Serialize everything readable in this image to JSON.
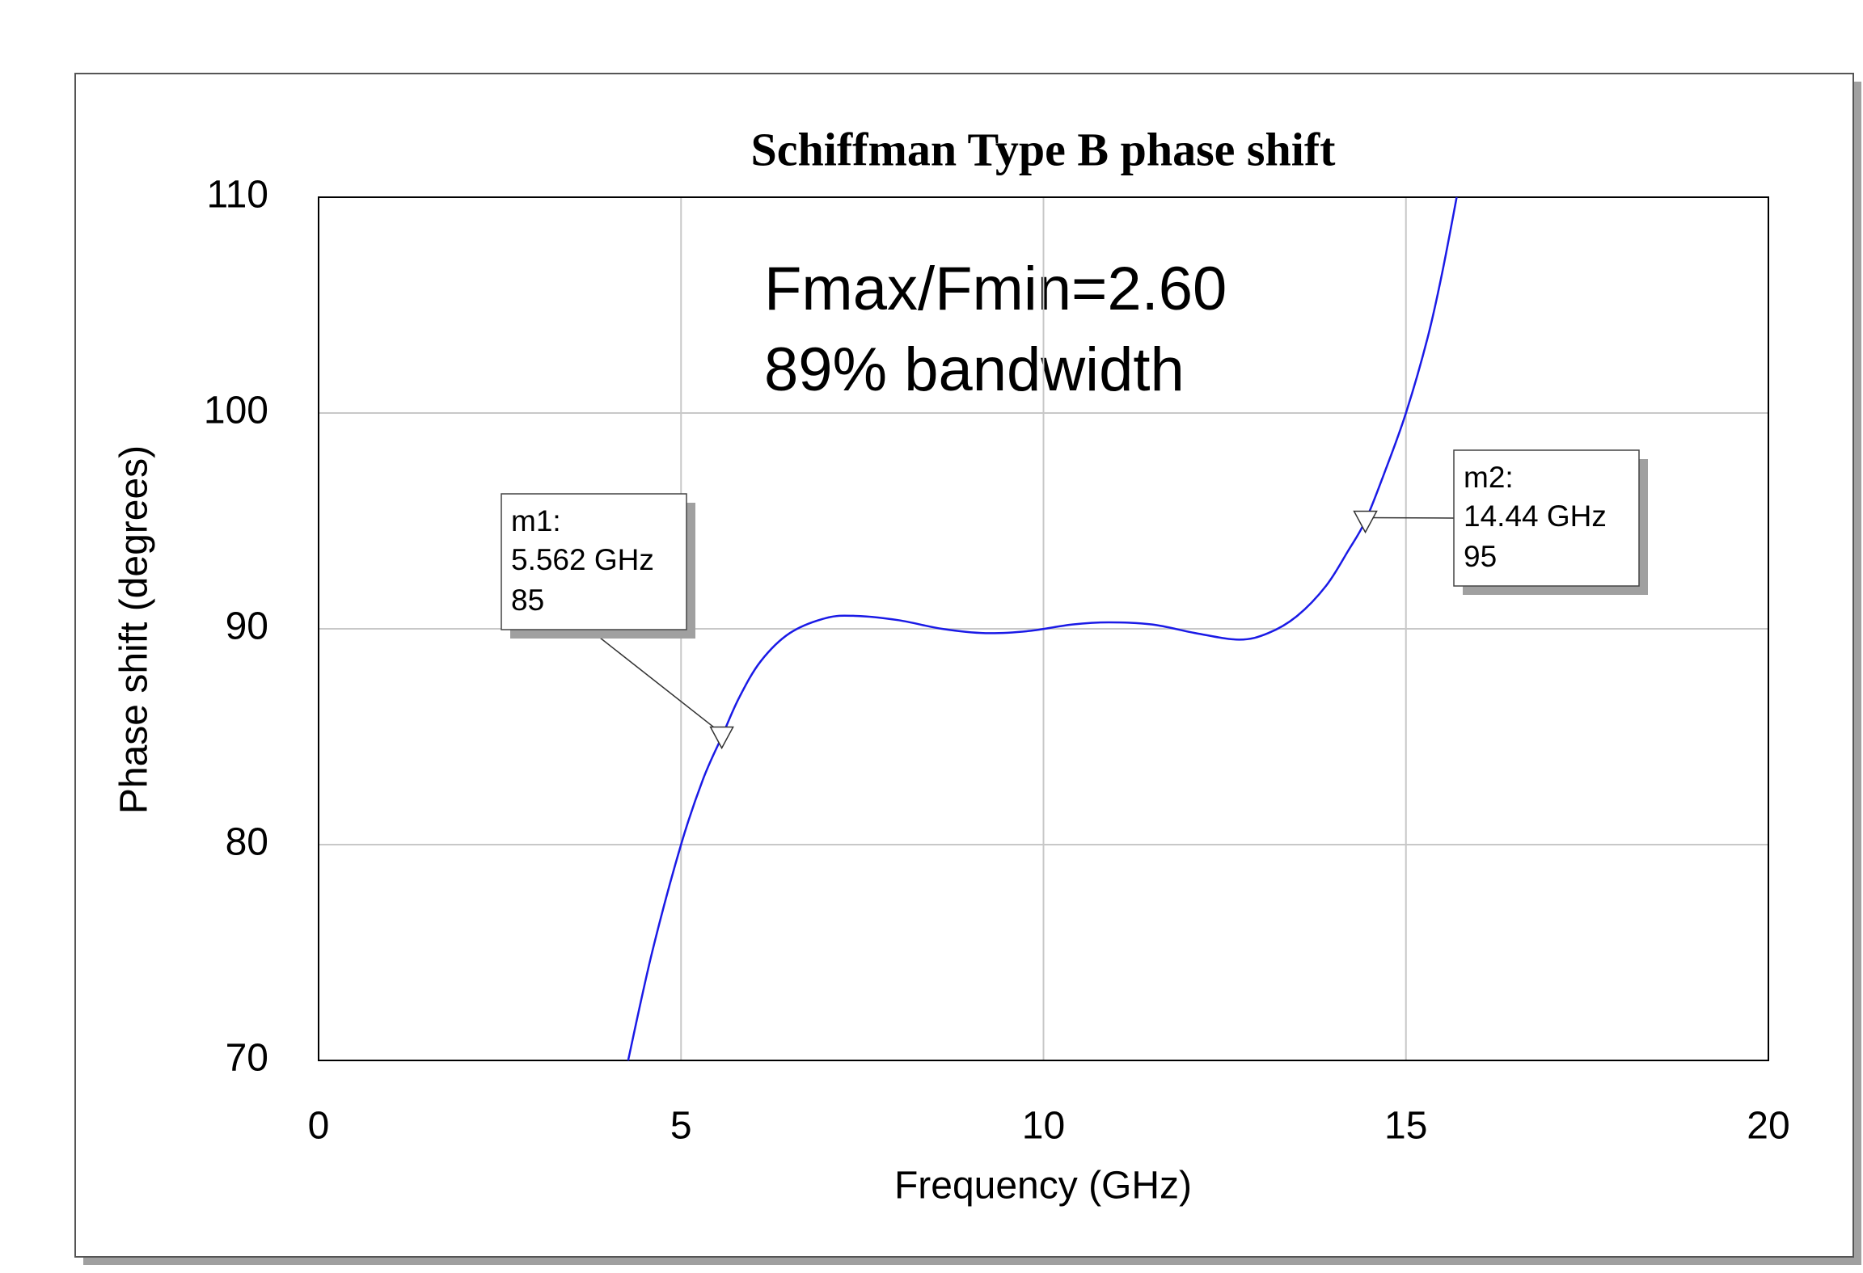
{
  "chart_data": {
    "type": "line",
    "title": "Schiffman Type B phase shift",
    "x_label": "Frequency (GHz)",
    "y_label": "Phase shift (degrees)",
    "xlim": [
      0,
      20
    ],
    "xticks": [
      0,
      5,
      10,
      15,
      20
    ],
    "ylim": [
      70,
      110
    ],
    "yticks": [
      70,
      80,
      90,
      100,
      110
    ],
    "grid": true,
    "annotations": [
      "Fmax/Fmin=2.60",
      "89% bandwidth"
    ],
    "x": [
      4.27,
      4.6,
      5.0,
      5.3,
      5.562,
      5.8,
      6.1,
      6.5,
      7.0,
      7.4,
      8.0,
      8.6,
      9.2,
      9.8,
      10.4,
      10.9,
      11.5,
      12.1,
      12.7,
      13.1,
      13.5,
      13.9,
      14.2,
      14.44,
      14.7,
      15.0,
      15.3,
      15.5,
      15.7
    ],
    "series": [
      {
        "color": "#1a1ae6",
        "values": [
          70,
          75,
          80,
          83,
          85,
          86.8,
          88.5,
          89.8,
          90.5,
          90.6,
          90.4,
          90.0,
          89.8,
          89.9,
          90.2,
          90.3,
          90.2,
          89.8,
          89.5,
          89.8,
          90.6,
          92.0,
          93.6,
          95,
          97.2,
          100,
          103.5,
          106.5,
          110
        ]
      }
    ],
    "markers": [
      {
        "name": "m1:",
        "x": {
          "value": 5.562,
          "label": "5.562 GHz"
        },
        "y": 85
      },
      {
        "name": "m2:",
        "x": {
          "value": 14.44,
          "label": "14.44 GHz"
        },
        "y": 95
      }
    ]
  }
}
